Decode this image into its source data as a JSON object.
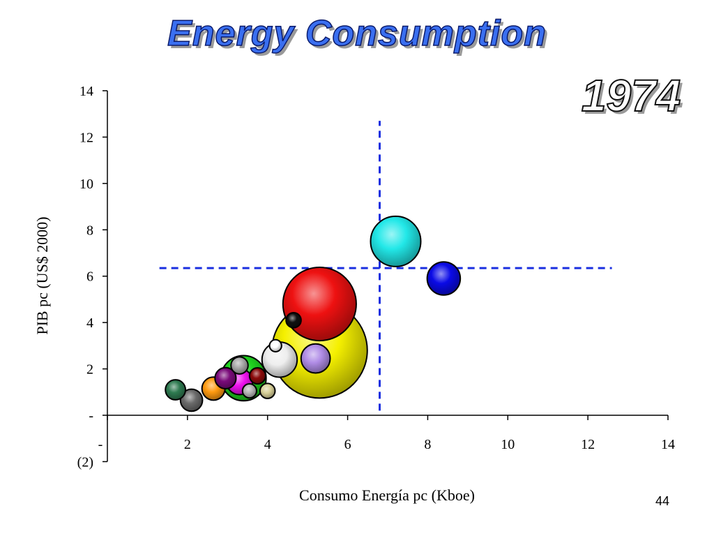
{
  "slide": {
    "title": "Energy Consumption",
    "year": "1974",
    "page_number": "44"
  },
  "chart_data": {
    "type": "scatter",
    "title": "Energy Consumption",
    "xlabel": "Consumo Energía pc (Kboe)",
    "ylabel": "PIB pc (US$ 2000)",
    "xlim": [
      0,
      14
    ],
    "ylim": [
      -2,
      14
    ],
    "x_ticks": [
      {
        "value": 2,
        "label": "2"
      },
      {
        "value": 4,
        "label": "4"
      },
      {
        "value": 6,
        "label": "6"
      },
      {
        "value": 8,
        "label": "8"
      },
      {
        "value": 10,
        "label": "10"
      },
      {
        "value": 12,
        "label": "12"
      },
      {
        "value": 14,
        "label": "14"
      }
    ],
    "x_zero_label": "-",
    "y_ticks": [
      {
        "value": 14,
        "label": "14"
      },
      {
        "value": 12,
        "label": "12"
      },
      {
        "value": 10,
        "label": "10"
      },
      {
        "value": 8,
        "label": "8"
      },
      {
        "value": 6,
        "label": "6"
      },
      {
        "value": 4,
        "label": "4"
      },
      {
        "value": 2,
        "label": "2"
      },
      {
        "value": 0,
        "label": "-"
      },
      {
        "value": -2,
        "label": "(2)"
      }
    ],
    "grid": false,
    "legend": "none",
    "reference_lines": {
      "color": "#1a2fe0",
      "vertical_x": 6.8,
      "vertical_y_range": [
        0.2,
        12.7
      ],
      "horizontal_y": 6.35,
      "horizontal_x_range": [
        1.3,
        12.6
      ]
    },
    "bubbles": [
      {
        "x": 5.3,
        "y": 2.8,
        "size": 9.5,
        "color": "#f5f000"
      },
      {
        "x": 5.3,
        "y": 4.8,
        "size": 7.3,
        "color": "#ee1111"
      },
      {
        "x": 7.2,
        "y": 7.5,
        "size": 5.0,
        "color": "#22e8e8"
      },
      {
        "x": 8.4,
        "y": 5.9,
        "size": 3.3,
        "color": "#0a0ae6"
      },
      {
        "x": 3.4,
        "y": 1.6,
        "size": 4.5,
        "color": "#1fd41f"
      },
      {
        "x": 4.3,
        "y": 2.4,
        "size": 3.5,
        "color": "#eeeeee"
      },
      {
        "x": 5.2,
        "y": 2.45,
        "size": 2.9,
        "color": "#b08ce6"
      },
      {
        "x": 4.65,
        "y": 4.1,
        "size": 1.5,
        "color": "#111111"
      },
      {
        "x": 4.2,
        "y": 3.0,
        "size": 1.2,
        "color": "#ffffff"
      },
      {
        "x": 3.3,
        "y": 1.45,
        "size": 2.6,
        "color": "#ee11ee"
      },
      {
        "x": 3.75,
        "y": 1.7,
        "size": 1.6,
        "color": "#8a0a0a"
      },
      {
        "x": 3.3,
        "y": 2.15,
        "size": 1.7,
        "color": "#a8a8a8"
      },
      {
        "x": 2.95,
        "y": 1.6,
        "size": 2.1,
        "color": "#7a0a7a"
      },
      {
        "x": 2.65,
        "y": 1.15,
        "size": 2.3,
        "color": "#ff9a10"
      },
      {
        "x": 3.55,
        "y": 1.05,
        "size": 1.4,
        "color": "#b4b4b4"
      },
      {
        "x": 4.0,
        "y": 1.05,
        "size": 1.5,
        "color": "#d8d098"
      },
      {
        "x": 1.7,
        "y": 1.1,
        "size": 2.0,
        "color": "#2e7a50"
      },
      {
        "x": 2.1,
        "y": 0.65,
        "size": 2.2,
        "color": "#6a6a6a"
      }
    ]
  }
}
